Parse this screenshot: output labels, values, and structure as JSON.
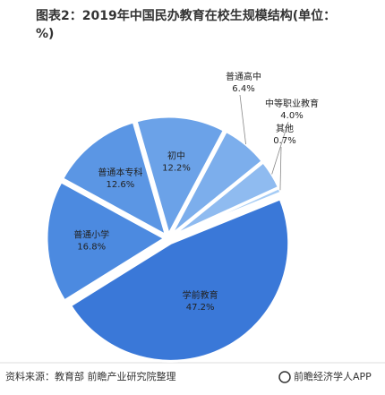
{
  "chart_data": {
    "type": "pie",
    "title": "图表2：2019年中国民办教育在校生规模结构(单位：%)",
    "categories": [
      "学前教育",
      "普通小学",
      "普通本专科",
      "初中",
      "普通高中",
      "中等职业教育",
      "其他"
    ],
    "values": [
      47.2,
      16.8,
      12.6,
      12.2,
      6.4,
      4.0,
      0.7
    ],
    "value_labels": [
      "47.2%",
      "16.8%",
      "12.6%",
      "12.2%",
      "6.4%",
      "4.0%",
      "0.7%"
    ],
    "colors": [
      "#3a78d8",
      "#4c8ae0",
      "#5b96e4",
      "#6ba2e8",
      "#7caeec",
      "#8fbbf0",
      "#a6ccf5"
    ],
    "source": "资料来源：教育部 前瞻产业研究院整理",
    "logo": "前瞻经济学人APP"
  }
}
